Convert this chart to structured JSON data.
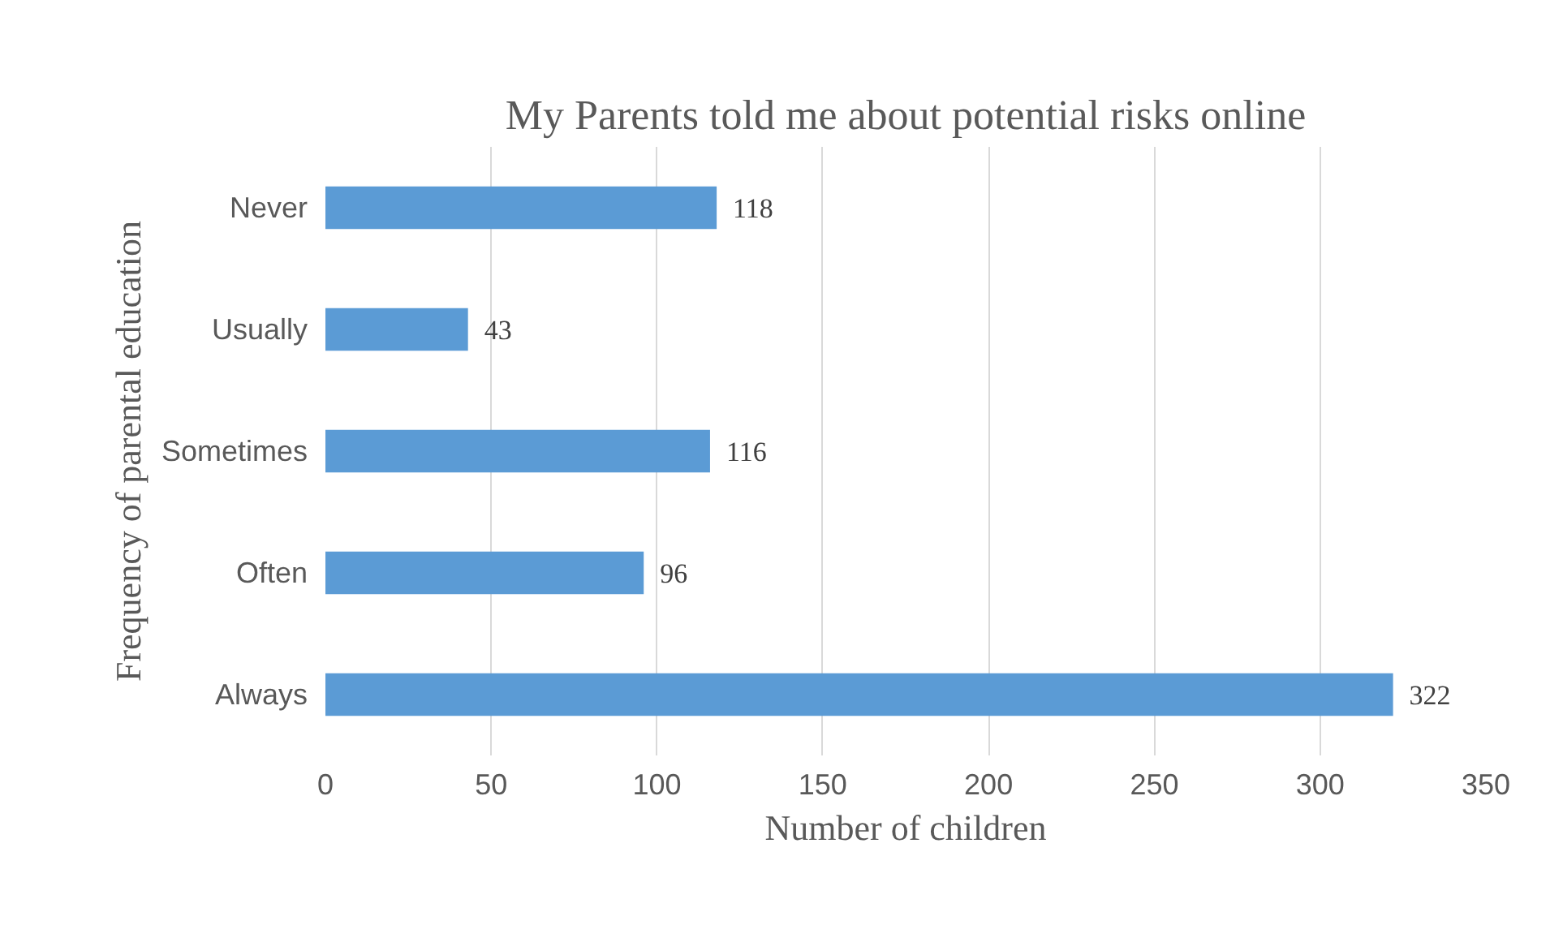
{
  "chart_data": {
    "type": "bar",
    "orientation": "horizontal",
    "title": "My Parents told me about potential risks online",
    "xlabel": "Number of children",
    "ylabel": "Frequency of parental education",
    "categories": [
      "Never",
      "Usually",
      "Sometimes",
      "Often",
      "Always"
    ],
    "values": [
      118,
      43,
      116,
      96,
      322
    ],
    "color": "#5b9bd5",
    "xlim": [
      0,
      350
    ],
    "xticks": [
      0,
      50,
      100,
      150,
      200,
      250,
      300,
      350
    ],
    "grid": "x",
    "data_labels": true
  }
}
